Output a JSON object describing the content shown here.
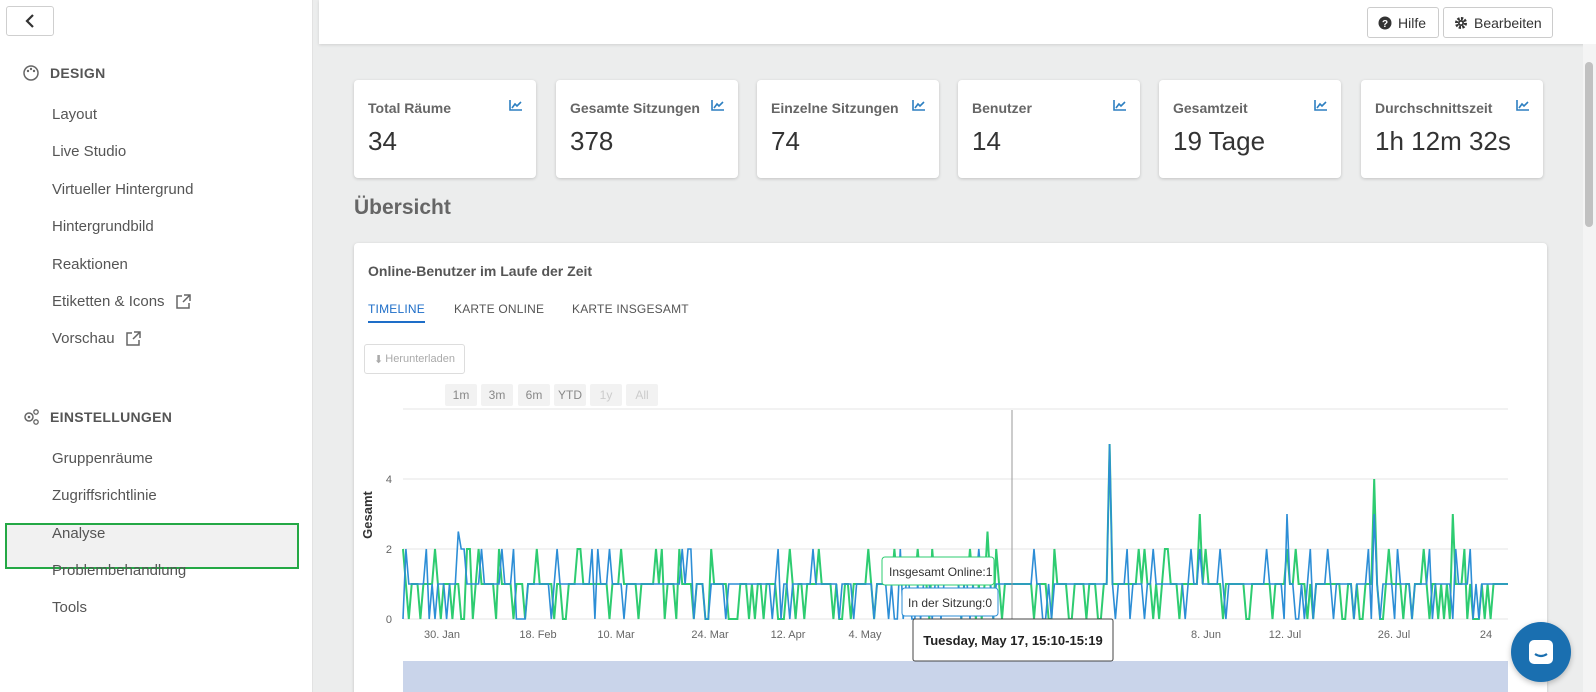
{
  "sidebar": {
    "sections": [
      {
        "title": "DESIGN",
        "icon": "palette-icon",
        "items": [
          {
            "label": "Layout"
          },
          {
            "label": "Live Studio"
          },
          {
            "label": "Virtueller Hintergrund"
          },
          {
            "label": "Hintergrundbild"
          },
          {
            "label": "Reaktionen"
          },
          {
            "label": "Etiketten & Icons",
            "icon": "external-link-icon"
          },
          {
            "label": "Vorschau",
            "icon": "external-link-icon"
          }
        ]
      },
      {
        "title": "EINSTELLUNGEN",
        "icon": "gears-icon",
        "items": [
          {
            "label": "Gruppenräume"
          },
          {
            "label": "Zugriffsrichtlinie"
          },
          {
            "label": "Analyse",
            "active": true
          },
          {
            "label": "Problembehandlung"
          },
          {
            "label": "Tools"
          }
        ]
      }
    ]
  },
  "topbar": {
    "help_label": "Hilfe",
    "edit_label": "Bearbeiten"
  },
  "stats": [
    {
      "label": "Total Räume",
      "value": "34"
    },
    {
      "label": "Gesamte Sitzungen",
      "value": "378"
    },
    {
      "label": "Einzelne Sitzungen",
      "value": "74"
    },
    {
      "label": "Benutzer",
      "value": "14"
    },
    {
      "label": "Gesamtzeit",
      "value": "19 Tage"
    },
    {
      "label": "Durchschnittszeit",
      "value": "1h 12m 32s"
    }
  ],
  "overview_title": "Übersicht",
  "chart_panel": {
    "title": "Online-Benutzer im Laufe der Zeit",
    "tabs": [
      {
        "label": "TIMELINE",
        "active": true
      },
      {
        "label": "KARTE ONLINE"
      },
      {
        "label": "KARTE INSGESAMT"
      }
    ],
    "download_label": "Herunterladen",
    "ranges": [
      {
        "label": "1m"
      },
      {
        "label": "3m"
      },
      {
        "label": "6m"
      },
      {
        "label": "YTD"
      },
      {
        "label": "1y",
        "disabled": true
      },
      {
        "label": "All",
        "disabled": true
      }
    ]
  },
  "chart_data": {
    "type": "line",
    "ylabel": "Gesamt",
    "yticks": [
      "0",
      "2",
      "4"
    ],
    "ylim": [
      0,
      6
    ],
    "xticks": [
      "30. Jan",
      "18. Feb",
      "10. Mar",
      "24. Mar",
      "12. Apr",
      "4. May",
      "un",
      "8. Jun",
      "12. Jul",
      "26. Jul",
      "24"
    ],
    "series": [
      {
        "name": "Insgesamt Online",
        "color": "#2ecc71",
        "peaks": [
          [
            0.0,
            2
          ],
          [
            0.03,
            2
          ],
          [
            0.06,
            2
          ],
          [
            0.12,
            2
          ],
          [
            0.16,
            2
          ],
          [
            0.23,
            2
          ],
          [
            0.28,
            2
          ],
          [
            0.35,
            2
          ],
          [
            0.42,
            2
          ],
          [
            0.48,
            2
          ],
          [
            0.53,
            2.5
          ],
          [
            0.59,
            2
          ],
          [
            0.64,
            5
          ],
          [
            0.69,
            2
          ],
          [
            0.72,
            3
          ],
          [
            0.8,
            2
          ],
          [
            0.88,
            4
          ],
          [
            0.95,
            3
          ]
        ]
      },
      {
        "name": "In der Sitzung",
        "color": "#2d8ed6",
        "peaks": [
          [
            0.02,
            2
          ],
          [
            0.05,
            2.5
          ],
          [
            0.07,
            2
          ],
          [
            0.09,
            2
          ],
          [
            0.14,
            2
          ],
          [
            0.17,
            2
          ],
          [
            0.26,
            2
          ],
          [
            0.37,
            2
          ],
          [
            0.45,
            2
          ],
          [
            0.57,
            2
          ],
          [
            0.64,
            5
          ],
          [
            0.72,
            2
          ],
          [
            0.74,
            2
          ],
          [
            0.8,
            3
          ],
          [
            0.82,
            2
          ],
          [
            0.88,
            3
          ],
          [
            0.9,
            2
          ],
          [
            0.93,
            2
          ]
        ]
      }
    ],
    "tooltip": {
      "date": "Tuesday, May 17, 15:10-15:19",
      "online_label": "Insgesamt Online:",
      "online_value": "1",
      "session_label": "In der Sitzung:",
      "session_value": "0"
    }
  }
}
